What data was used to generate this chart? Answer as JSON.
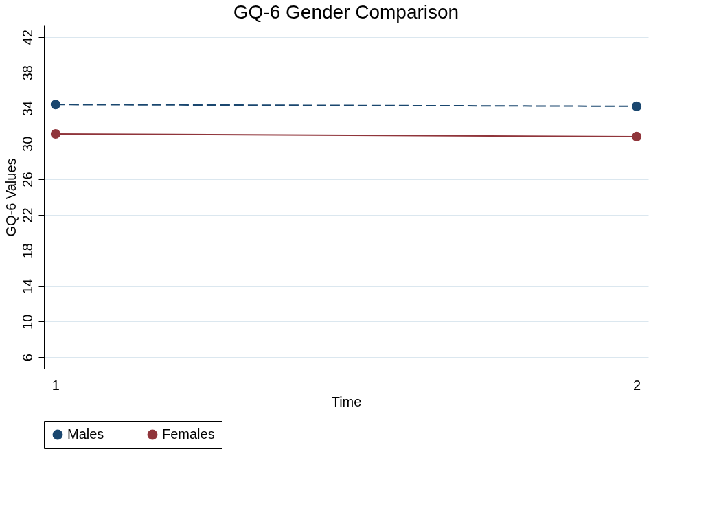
{
  "chart_data": {
    "type": "line",
    "title": "GQ-6 Gender Comparison",
    "xlabel": "Time",
    "ylabel": "GQ-6  Values",
    "x": [
      1,
      2
    ],
    "series": [
      {
        "name": "Males",
        "color": "#1a476f",
        "values": [
          34.4,
          34.2
        ],
        "line_style": "dashed"
      },
      {
        "name": "Females",
        "color": "#90353b",
        "values": [
          31.1,
          30.8
        ],
        "line_style": "solid"
      }
    ],
    "xlim": [
      0.98,
      2.02
    ],
    "xticks": [
      1,
      2
    ],
    "ylim": [
      4.7,
      43.3
    ],
    "yticks": [
      6,
      10,
      14,
      18,
      22,
      26,
      30,
      34,
      38,
      42
    ],
    "grid": "y",
    "legend": "bottom",
    "marker": "circle"
  }
}
